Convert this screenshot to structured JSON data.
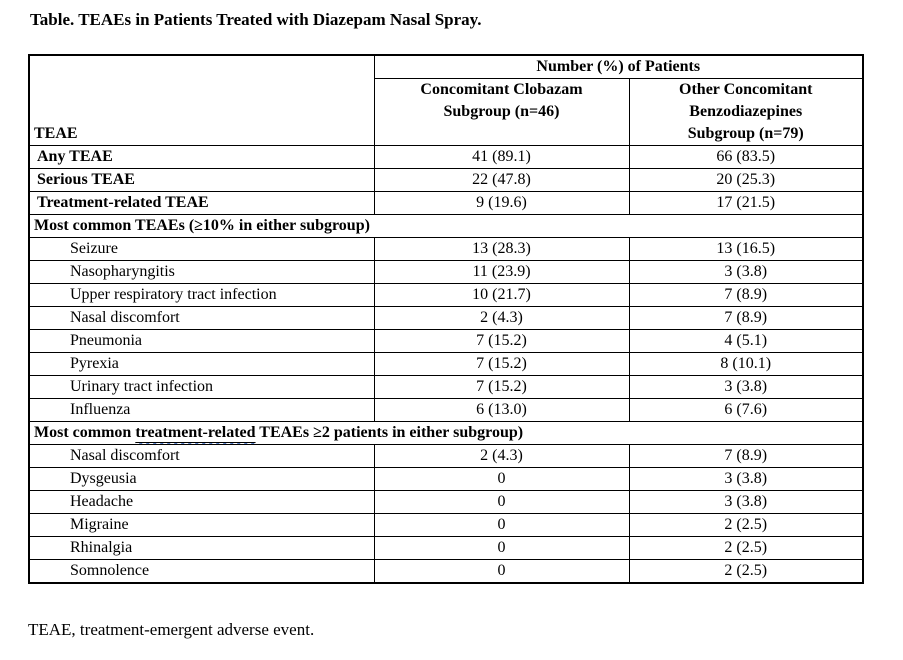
{
  "title": "Table. TEAEs in Patients Treated with Diazepam Nasal Spray.",
  "colors": {
    "text": "#000000",
    "border": "#000000",
    "background": "#ffffff",
    "grammar_underline": "#4472c4"
  },
  "table": {
    "spanning_header": "Number (%) of Patients",
    "col1_header": "TEAE",
    "col2_header": "Concomitant Clobazam\nSubgroup (n=46)",
    "col3_header": "Other Concomitant\nBenzodiazepines\nSubgroup (n=79)",
    "rows": [
      {
        "type": "group",
        "label": "Any TEAE",
        "clobazam": "41 (89.1)",
        "other": "66 (83.5)"
      },
      {
        "type": "group",
        "label": "Serious TEAE",
        "clobazam": "22 (47.8)",
        "other": "20 (25.3)"
      },
      {
        "type": "group",
        "label": "Treatment-related TEAE",
        "clobazam": "9 (19.6)",
        "other": "17 (21.5)"
      },
      {
        "type": "section",
        "pre": "Most common TEAEs (≥10% in either subgroup)",
        "underlined": "",
        "post": ""
      },
      {
        "type": "item",
        "label": "Seizure",
        "clobazam": "13 (28.3)",
        "other": "13 (16.5)"
      },
      {
        "type": "item",
        "label": "Nasopharyngitis",
        "clobazam": "11 (23.9)",
        "other": "3 (3.8)"
      },
      {
        "type": "item",
        "label": "Upper respiratory tract infection",
        "clobazam": "10 (21.7)",
        "other": "7 (8.9)"
      },
      {
        "type": "item",
        "label": "Nasal discomfort",
        "clobazam": "2 (4.3)",
        "other": "7 (8.9)"
      },
      {
        "type": "item",
        "label": "Pneumonia",
        "clobazam": "7 (15.2)",
        "other": "4 (5.1)"
      },
      {
        "type": "item",
        "label": "Pyrexia",
        "clobazam": "7 (15.2)",
        "other": "8 (10.1)"
      },
      {
        "type": "item",
        "label": "Urinary tract infection",
        "clobazam": "7 (15.2)",
        "other": "3 (3.8)"
      },
      {
        "type": "item",
        "label": "Influenza",
        "clobazam": "6 (13.0)",
        "other": "6 (7.6)"
      },
      {
        "type": "section",
        "pre": "Most common ",
        "underlined": "treatment-related",
        "post": " TEAEs ≥2 patients in either subgroup)"
      },
      {
        "type": "item",
        "label": "Nasal discomfort",
        "clobazam": "2 (4.3)",
        "other": "7 (8.9)"
      },
      {
        "type": "item",
        "label": "Dysgeusia",
        "clobazam": "0",
        "other": "3 (3.8)"
      },
      {
        "type": "item",
        "label": "Headache",
        "clobazam": "0",
        "other": "3 (3.8)"
      },
      {
        "type": "item",
        "label": "Migraine",
        "clobazam": "0",
        "other": "2 (2.5)"
      },
      {
        "type": "item",
        "label": "Rhinalgia",
        "clobazam": "0",
        "other": "2 (2.5)"
      },
      {
        "type": "item",
        "label": "Somnolence",
        "clobazam": "0",
        "other": "2 (2.5)"
      }
    ]
  },
  "footnote": "TEAE, treatment-emergent adverse event."
}
